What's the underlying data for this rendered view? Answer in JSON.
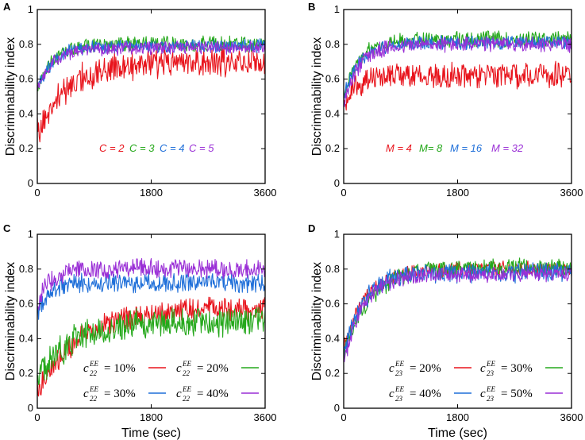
{
  "chart_data": [
    {
      "panel": "A",
      "type": "line",
      "xlabel": "",
      "ylabel": "Discriminability index",
      "xlim": [
        0,
        3600
      ],
      "ylim": [
        0,
        1
      ],
      "xticks": [
        "0",
        "1800",
        "3600"
      ],
      "yticks": [
        "0",
        "0.2",
        "0.4",
        "0.6",
        "0.8",
        "1"
      ],
      "legend_style": "text",
      "series": [
        {
          "name": "C = 2",
          "color": "#e8141c",
          "start": 0.3,
          "mean": 0.7,
          "noise": 0.075,
          "rise": 500,
          "seed": 11
        },
        {
          "name": "C = 3",
          "color": "#25a81b",
          "start": 0.55,
          "mean": 0.8,
          "noise": 0.04,
          "rise": 250,
          "seed": 12
        },
        {
          "name": "C = 4",
          "color": "#1f6fd9",
          "start": 0.55,
          "mean": 0.79,
          "noise": 0.035,
          "rise": 250,
          "seed": 13
        },
        {
          "name": "C = 5",
          "color": "#9a2fd6",
          "start": 0.55,
          "mean": 0.78,
          "noise": 0.035,
          "rise": 250,
          "seed": 14
        }
      ]
    },
    {
      "panel": "B",
      "type": "line",
      "xlabel": "",
      "ylabel": "Discriminability index",
      "xlim": [
        0,
        3600
      ],
      "ylim": [
        0,
        1
      ],
      "xticks": [
        "0",
        "1800",
        "3600"
      ],
      "yticks": [
        "0",
        "0.2",
        "0.4",
        "0.6",
        "0.8",
        "1"
      ],
      "legend_style": "text",
      "series": [
        {
          "name": "M = 4",
          "color": "#e8141c",
          "start": 0.45,
          "mean": 0.62,
          "noise": 0.065,
          "rise": 200,
          "seed": 21
        },
        {
          "name": "M= 8",
          "color": "#25a81b",
          "start": 0.5,
          "mean": 0.83,
          "noise": 0.04,
          "rise": 250,
          "seed": 22
        },
        {
          "name": "M = 16",
          "color": "#1f6fd9",
          "start": 0.5,
          "mean": 0.81,
          "noise": 0.035,
          "rise": 250,
          "seed": 23
        },
        {
          "name": "M = 32",
          "color": "#9a2fd6",
          "start": 0.45,
          "mean": 0.8,
          "noise": 0.04,
          "rise": 250,
          "seed": 24
        }
      ]
    },
    {
      "panel": "C",
      "type": "line",
      "xlabel": "Time (sec)",
      "ylabel": "Discriminability index",
      "xlim": [
        0,
        3600
      ],
      "ylim": [
        0,
        1
      ],
      "xticks": [
        "0",
        "1800",
        "3600"
      ],
      "yticks": [
        "0",
        "0.2",
        "0.4",
        "0.6",
        "0.8",
        "1"
      ],
      "legend_style": "math",
      "legend_base": "c",
      "legend_sup": "EE",
      "legend_sub": "22",
      "series": [
        {
          "name": "= 10%",
          "color": "#e8141c",
          "start": 0.1,
          "mean": 0.58,
          "noise": 0.06,
          "rise": 700,
          "seed": 31
        },
        {
          "name": "= 20%",
          "color": "#25a81b",
          "start": 0.15,
          "mean": 0.5,
          "noise": 0.08,
          "rise": 500,
          "seed": 32
        },
        {
          "name": "= 30%",
          "color": "#1f6fd9",
          "start": 0.55,
          "mean": 0.72,
          "noise": 0.05,
          "rise": 200,
          "seed": 33
        },
        {
          "name": "= 40%",
          "color": "#9a2fd6",
          "start": 0.6,
          "mean": 0.8,
          "noise": 0.05,
          "rise": 200,
          "seed": 34
        }
      ]
    },
    {
      "panel": "D",
      "type": "line",
      "xlabel": "Time (sec)",
      "ylabel": "Discriminability index",
      "xlim": [
        0,
        3600
      ],
      "ylim": [
        0,
        1
      ],
      "xticks": [
        "0",
        "1800",
        "3600"
      ],
      "yticks": [
        "0",
        "0.2",
        "0.4",
        "0.6",
        "0.8",
        "1"
      ],
      "legend_style": "math",
      "legend_base": "c",
      "legend_sup": "EE",
      "legend_sub": "23",
      "series": [
        {
          "name": "= 20%",
          "color": "#e8141c",
          "start": 0.35,
          "mean": 0.8,
          "noise": 0.04,
          "rise": 350,
          "seed": 41
        },
        {
          "name": "= 30%",
          "color": "#25a81b",
          "start": 0.3,
          "mean": 0.81,
          "noise": 0.045,
          "rise": 400,
          "seed": 42
        },
        {
          "name": "= 40%",
          "color": "#1f6fd9",
          "start": 0.3,
          "mean": 0.78,
          "noise": 0.05,
          "rise": 300,
          "seed": 43
        },
        {
          "name": "= 50%",
          "color": "#9a2fd6",
          "start": 0.25,
          "mean": 0.77,
          "noise": 0.04,
          "rise": 300,
          "seed": 44
        }
      ]
    }
  ]
}
